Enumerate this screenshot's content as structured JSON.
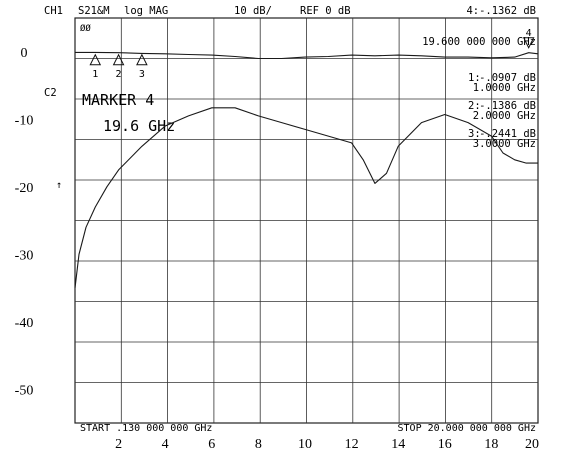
{
  "header": {
    "channel": "CH1",
    "param": "S21&M",
    "format": "log MAG",
    "scale": "10 dB/",
    "ref": "REF 0 dB",
    "marker_readout": "4:-.1362  dB",
    "marker_freq": "19.600 000 000 GHz",
    "corner_tag": "ØØ"
  },
  "side": {
    "c2": "C2",
    "ref_arrow": "↑"
  },
  "marker_box": {
    "title": "MARKER 4",
    "value": "19.6 GHz"
  },
  "marker_table": [
    {
      "num": "1:",
      "db": "-.0907  dB",
      "freq": "1.0000  GHz"
    },
    {
      "num": "2:",
      "db": "-.1386  dB",
      "freq": "2.0000  GHz"
    },
    {
      "num": "3:",
      "db": "-.2441  dB",
      "freq": "3.0000  GHz"
    }
  ],
  "footer": {
    "start": "START  .130 000 000 GHz",
    "stop": "STOP 20.000 000 000 GHz"
  },
  "chart_data": {
    "type": "line",
    "x_unit": "GHz",
    "xlim": [
      0.13,
      20
    ],
    "ylim": [
      -55,
      5
    ],
    "y_ticks": [
      0,
      -10,
      -20,
      -30,
      -40,
      -50
    ],
    "x_ticks": [
      2,
      4,
      6,
      8,
      10,
      12,
      14,
      16,
      18,
      20
    ],
    "grid": true,
    "series": [
      {
        "x": [
          0.13,
          1,
          2,
          3,
          4,
          5,
          6,
          7,
          8,
          9,
          10,
          11,
          12,
          13,
          14,
          15,
          16,
          17,
          18,
          19,
          19.6,
          20
        ],
        "y": [
          -0.1,
          -0.09,
          -0.14,
          -0.24,
          -0.3,
          -0.4,
          -0.5,
          -0.7,
          -1.0,
          -1.0,
          -0.8,
          -0.7,
          -0.5,
          -0.6,
          -0.5,
          -0.6,
          -0.8,
          -0.8,
          -0.9,
          -0.8,
          -0.14,
          -0.3
        ]
      },
      {
        "x": [
          0.13,
          0.3,
          0.6,
          1,
          1.5,
          2,
          3,
          4,
          5,
          6,
          7,
          8,
          9,
          10,
          11,
          12,
          12.5,
          13,
          13.5,
          14,
          15,
          16,
          17,
          18,
          18.5,
          19,
          19.5,
          20
        ],
        "y": [
          -35,
          -30,
          -26,
          -23,
          -20,
          -17.5,
          -14,
          -11,
          -9.5,
          -8.3,
          -8.3,
          -9.5,
          -10.5,
          -11.5,
          -12.5,
          -13.5,
          -16,
          -19.5,
          -18,
          -14,
          -10.5,
          -9.3,
          -10.5,
          -12.5,
          -15,
          -16,
          -16.5,
          -16.5
        ]
      }
    ],
    "markers": [
      {
        "label": "1",
        "x": 1.0
      },
      {
        "label": "2",
        "x": 2.0
      },
      {
        "label": "3",
        "x": 3.0
      },
      {
        "label": "4",
        "x": 19.6
      }
    ]
  }
}
